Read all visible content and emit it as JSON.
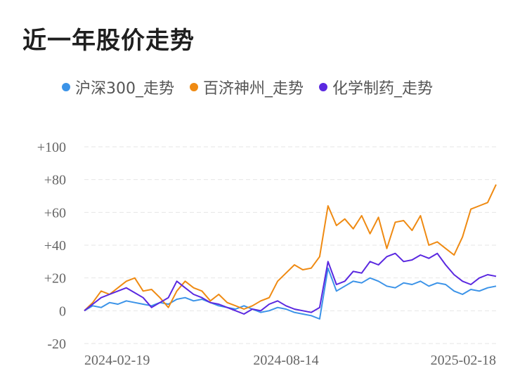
{
  "title": "近一年股价走势",
  "legend": [
    {
      "label": "沪深300_走势",
      "color": "#3b93e8"
    },
    {
      "label": "百济神州_走势",
      "color": "#ef8a12"
    },
    {
      "label": "化学制药_走势",
      "color": "#5a28e0"
    }
  ],
  "chart_data": {
    "type": "line",
    "title": "近一年股价走势",
    "xlabel": "",
    "ylabel": "",
    "ylim": [
      -20,
      100
    ],
    "yticks": [
      {
        "v": 100,
        "label": "+100"
      },
      {
        "v": 80,
        "label": "+80"
      },
      {
        "v": 60,
        "label": "+60"
      },
      {
        "v": 40,
        "label": "+40"
      },
      {
        "v": 20,
        "label": "+20"
      },
      {
        "v": 0,
        "label": "0"
      },
      {
        "v": -20,
        "label": "-20"
      }
    ],
    "xticks": [
      {
        "idx": 0,
        "label": "2024-02-19"
      },
      {
        "idx": 24,
        "label": "2024-08-14"
      },
      {
        "idx": 49,
        "label": "2025-02-18"
      }
    ],
    "grid": true,
    "legend_position": "top",
    "n_points": 50,
    "series": [
      {
        "name": "沪深300_走势",
        "color": "#3b93e8",
        "values": [
          0,
          3,
          2,
          5,
          4,
          6,
          5,
          4,
          3,
          5,
          4,
          7,
          8,
          6,
          7,
          5,
          3,
          2,
          1,
          3,
          1,
          -1,
          0,
          2,
          1,
          -1,
          -2,
          -3,
          -5,
          26,
          12,
          15,
          18,
          17,
          20,
          18,
          15,
          14,
          17,
          16,
          18,
          15,
          17,
          16,
          12,
          10,
          13,
          12,
          14,
          15
        ]
      },
      {
        "name": "百济神州_走势",
        "color": "#ef8a12",
        "values": [
          0,
          5,
          12,
          10,
          14,
          18,
          20,
          12,
          13,
          8,
          2,
          12,
          18,
          14,
          12,
          6,
          10,
          5,
          3,
          1,
          3,
          6,
          8,
          18,
          23,
          28,
          25,
          26,
          33,
          64,
          52,
          56,
          50,
          58,
          47,
          57,
          38,
          54,
          55,
          49,
          58,
          40,
          42,
          38,
          34,
          45,
          62,
          64,
          66,
          77
        ]
      },
      {
        "name": "化学制药_走势",
        "color": "#5a28e0",
        "values": [
          0,
          4,
          8,
          10,
          12,
          14,
          11,
          8,
          2,
          5,
          8,
          18,
          14,
          10,
          8,
          5,
          4,
          2,
          0,
          -2,
          1,
          0,
          4,
          6,
          3,
          1,
          0,
          -1,
          2,
          30,
          16,
          18,
          24,
          23,
          30,
          28,
          33,
          35,
          30,
          31,
          34,
          32,
          35,
          28,
          22,
          18,
          16,
          20,
          22,
          21
        ]
      }
    ]
  }
}
